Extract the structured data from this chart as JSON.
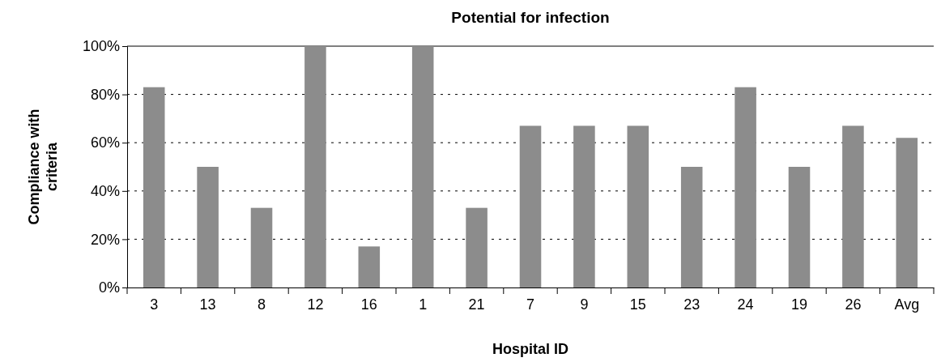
{
  "chart_data": {
    "type": "bar",
    "title": "Potential for infection",
    "xlabel": "Hospital ID",
    "ylabel": "Compliance with criteria",
    "categories": [
      "3",
      "13",
      "8",
      "12",
      "16",
      "1",
      "21",
      "7",
      "9",
      "15",
      "23",
      "24",
      "19",
      "26",
      "Avg"
    ],
    "values": [
      83,
      50,
      33,
      100,
      17,
      100,
      33,
      67,
      67,
      67,
      50,
      83,
      50,
      67,
      62
    ],
    "color": "#8c8c8c",
    "ylim": [
      0,
      100
    ],
    "yticks": [
      {
        "value": 0,
        "label": "0%"
      },
      {
        "value": 20,
        "label": "20%"
      },
      {
        "value": 40,
        "label": "40%"
      },
      {
        "value": 60,
        "label": "60%"
      },
      {
        "value": 80,
        "label": "80%"
      },
      {
        "value": 100,
        "label": "100%"
      }
    ],
    "grid": "y"
  }
}
